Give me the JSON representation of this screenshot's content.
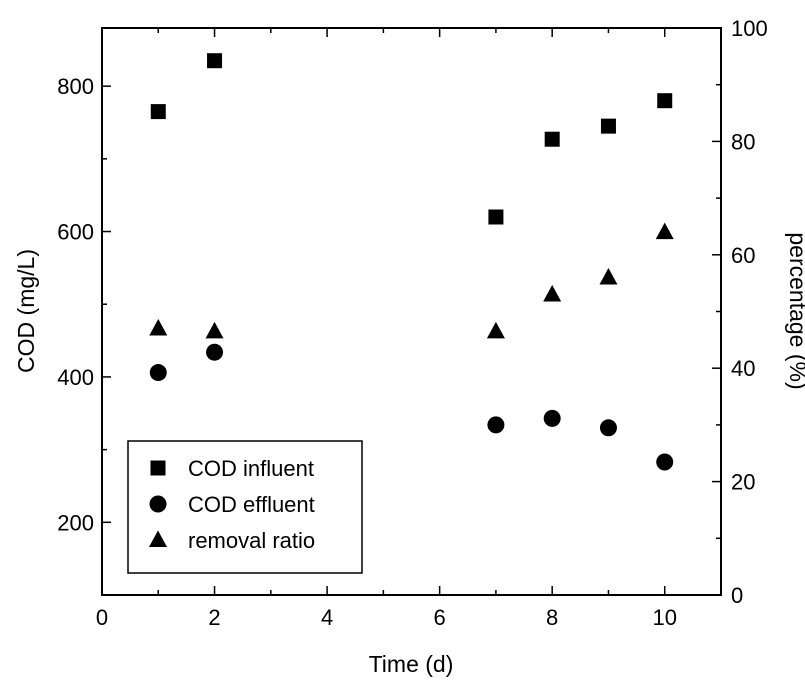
{
  "chart_data": {
    "type": "scatter",
    "xlabel": "Time (d)",
    "ylabel_left": "COD (mg/L)",
    "ylabel_right": "percentage (%)",
    "xlim": [
      0,
      11
    ],
    "ylim_left": [
      100,
      880
    ],
    "ylim_right": [
      0,
      100
    ],
    "x_ticks": [
      0,
      2,
      4,
      6,
      8,
      10
    ],
    "y_left_ticks": [
      200,
      400,
      600,
      800
    ],
    "y_right_ticks": [
      0,
      20,
      40,
      60,
      80,
      100
    ],
    "grid": false,
    "legend_position": "bottom-left",
    "series": [
      {
        "name": "COD influent",
        "marker": "square",
        "axis": "left",
        "x": [
          1,
          2,
          7,
          8,
          9,
          10
        ],
        "y": [
          765,
          835,
          620,
          727,
          745,
          780
        ]
      },
      {
        "name": "COD effluent",
        "marker": "circle",
        "axis": "left",
        "x": [
          1,
          2,
          7,
          8,
          9,
          10
        ],
        "y": [
          406,
          434,
          334,
          343,
          330,
          283
        ]
      },
      {
        "name": "removal ratio",
        "marker": "triangle",
        "axis": "right",
        "x": [
          1,
          2,
          7,
          8,
          9,
          10
        ],
        "y": [
          47,
          46.5,
          46.5,
          53,
          56,
          64
        ]
      }
    ]
  }
}
